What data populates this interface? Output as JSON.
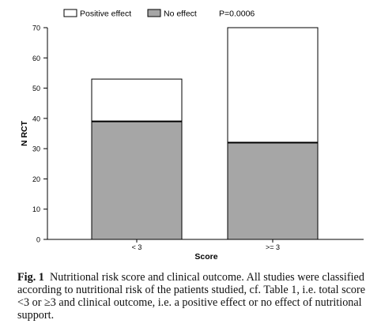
{
  "chart_data": {
    "type": "bar",
    "stacked": true,
    "categories": [
      "< 3",
      ">= 3"
    ],
    "series": [
      {
        "name": "No effect",
        "values": [
          39,
          32
        ],
        "color": "#a6a6a6"
      },
      {
        "name": "Positive effect",
        "values": [
          14,
          38
        ],
        "color": "#ffffff"
      }
    ],
    "xlabel": "Score",
    "ylabel": "N RCT",
    "ylim": [
      0,
      70
    ],
    "yticks": [
      0,
      10,
      20,
      30,
      40,
      50,
      60,
      70
    ],
    "legend_position": "top",
    "annotation": "P=0.0006",
    "grid": false
  },
  "caption": {
    "label": "Fig. 1",
    "text": "Nutritional risk score and clinical outcome. All studies were classified according to nutritional risk of the patients studied, cf. Table 1, i.e. total score <3 or ≥3 and clinical outcome, i.e. a positive effect or no effect of nutritional support."
  }
}
